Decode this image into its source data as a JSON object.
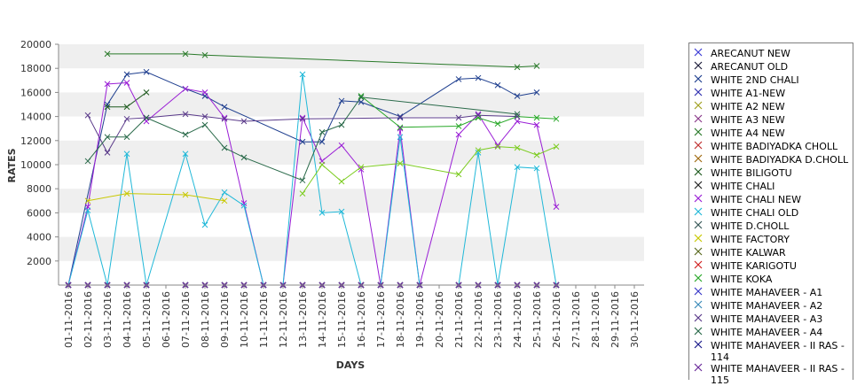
{
  "chart_data": {
    "type": "line",
    "xlabel": "DAYS",
    "ylabel": "RATES",
    "ylim": [
      0,
      20000
    ],
    "yticks": [
      2000,
      4000,
      6000,
      8000,
      10000,
      12000,
      14000,
      16000,
      18000,
      20000
    ],
    "grid": "horizontal bands",
    "legend": "right",
    "categories": [
      "01-11-2016",
      "02-11-2016",
      "03-11-2016",
      "04-11-2016",
      "05-11-2016",
      "06-11-2016",
      "07-11-2016",
      "08-11-2016",
      "09-11-2016",
      "10-11-2016",
      "11-11-2016",
      "12-11-2016",
      "13-11-2016",
      "14-11-2016",
      "15-11-2016",
      "16-11-2016",
      "17-11-2016",
      "18-11-2016",
      "19-11-2016",
      "20-11-2016",
      "21-11-2016",
      "22-11-2016",
      "23-11-2016",
      "24-11-2016",
      "25-11-2016",
      "26-11-2016",
      "27-11-2016",
      "28-11-2016",
      "29-11-2016",
      "30-11-2016"
    ],
    "series": [
      {
        "name": "ARECANUT NEW",
        "color": "#3b3bd6",
        "values": [
          0,
          0,
          0,
          0,
          0,
          null,
          0,
          0,
          0,
          0,
          0,
          0,
          0,
          0,
          0,
          0,
          0,
          0,
          0,
          null,
          0,
          0,
          0,
          0,
          0,
          0,
          null,
          null,
          null,
          null
        ]
      },
      {
        "name": "ARECANUT OLD",
        "color": "#1c1c3a",
        "values": [
          0,
          0,
          0,
          0,
          0,
          null,
          0,
          0,
          0,
          0,
          0,
          0,
          0,
          0,
          0,
          0,
          0,
          0,
          0,
          null,
          0,
          0,
          0,
          0,
          0,
          0,
          null,
          null,
          null,
          null
        ]
      },
      {
        "name": "WHITE 2ND CHALI",
        "color": "#1f3f8f",
        "values": [
          0,
          null,
          15000,
          17500,
          17700,
          null,
          16300,
          15700,
          14800,
          null,
          null,
          null,
          11900,
          11900,
          15300,
          15200,
          null,
          14000,
          null,
          null,
          17100,
          17200,
          16600,
          15700,
          16000,
          null,
          null,
          null,
          null,
          null
        ]
      },
      {
        "name": "WHITE A1-NEW",
        "color": "#3030b0",
        "values": [
          0,
          0,
          0,
          0,
          0,
          null,
          0,
          0,
          0,
          0,
          0,
          0,
          0,
          0,
          0,
          0,
          0,
          0,
          0,
          null,
          0,
          0,
          0,
          0,
          0,
          0,
          null,
          null,
          null,
          null
        ]
      },
      {
        "name": "WHITE A2 NEW",
        "color": "#a0a020",
        "values": [
          0,
          null,
          null,
          null,
          null,
          null,
          null,
          null,
          null,
          null,
          null,
          null,
          null,
          null,
          null,
          null,
          null,
          null,
          null,
          null,
          null,
          null,
          null,
          null,
          null,
          null,
          null,
          null,
          null,
          null
        ]
      },
      {
        "name": "WHITE A3 NEW",
        "color": "#8a3a8a",
        "values": [
          0,
          0,
          0,
          0,
          0,
          null,
          0,
          0,
          0,
          0,
          0,
          0,
          0,
          0,
          0,
          0,
          0,
          0,
          0,
          null,
          0,
          0,
          0,
          0,
          0,
          0,
          null,
          null,
          null,
          null
        ]
      },
      {
        "name": "WHITE A4 NEW",
        "color": "#2a7a2a",
        "values": [
          null,
          null,
          19200,
          null,
          null,
          null,
          19200,
          19100,
          null,
          null,
          null,
          null,
          null,
          null,
          null,
          null,
          null,
          null,
          null,
          null,
          null,
          null,
          null,
          18100,
          18200,
          null,
          null,
          null,
          null,
          null
        ]
      },
      {
        "name": "WHITE BADIYADKA CHOLL",
        "color": "#c03030",
        "values": [
          0,
          0,
          0,
          0,
          0,
          null,
          0,
          0,
          0,
          0,
          0,
          0,
          0,
          0,
          0,
          0,
          0,
          0,
          0,
          null,
          0,
          0,
          0,
          0,
          0,
          0,
          null,
          null,
          null,
          null
        ]
      },
      {
        "name": "WHITE BADIYADKA D.CHOLL",
        "color": "#a06a10",
        "values": [
          0,
          0,
          0,
          0,
          0,
          null,
          0,
          0,
          0,
          0,
          0,
          0,
          0,
          0,
          0,
          0,
          0,
          0,
          0,
          null,
          0,
          0,
          0,
          0,
          0,
          0,
          null,
          null,
          null,
          null
        ]
      },
      {
        "name": "WHITE BILIGOTU",
        "color": "#1e5a1e",
        "values": [
          null,
          null,
          14800,
          14800,
          16000,
          null,
          null,
          null,
          null,
          null,
          null,
          null,
          null,
          null,
          null,
          null,
          null,
          null,
          null,
          null,
          null,
          null,
          null,
          null,
          null,
          null,
          null,
          null,
          null,
          null
        ]
      },
      {
        "name": "WHITE CHALI",
        "color": "#222222",
        "values": [
          0,
          0,
          0,
          0,
          0,
          null,
          0,
          0,
          0,
          0,
          0,
          0,
          0,
          0,
          0,
          0,
          0,
          0,
          0,
          null,
          0,
          0,
          0,
          0,
          0,
          0,
          null,
          null,
          null,
          null
        ]
      },
      {
        "name": "WHITE CHALI NEW",
        "color": "#9a1ed6",
        "values": [
          0,
          6500,
          16700,
          16800,
          13600,
          null,
          16300,
          16000,
          13900,
          6800,
          0,
          0,
          13900,
          10300,
          11600,
          9600,
          0,
          13000,
          0,
          null,
          12500,
          14200,
          11600,
          13600,
          13300,
          6500,
          null,
          null,
          null,
          null
        ]
      },
      {
        "name": "WHITE CHALI OLD",
        "color": "#20b8d8",
        "values": [
          0,
          6200,
          0,
          10900,
          0,
          null,
          10900,
          5000,
          7700,
          6600,
          0,
          0,
          17500,
          6000,
          6100,
          0,
          0,
          12300,
          0,
          null,
          0,
          11000,
          0,
          9800,
          9700,
          0,
          null,
          null,
          null,
          null
        ]
      },
      {
        "name": "WHITE D.CHOLL",
        "color": "#3a5a5a",
        "values": [
          0,
          0,
          0,
          0,
          0,
          null,
          0,
          0,
          0,
          0,
          0,
          0,
          0,
          0,
          0,
          0,
          0,
          0,
          0,
          null,
          0,
          0,
          0,
          0,
          0,
          0,
          null,
          null,
          null,
          null
        ]
      },
      {
        "name": "WHITE FACTORY",
        "color": "#c8c800",
        "values": [
          null,
          7000,
          null,
          7600,
          null,
          null,
          7500,
          null,
          7000,
          null,
          null,
          null,
          null,
          null,
          null,
          null,
          null,
          null,
          null,
          null,
          null,
          null,
          null,
          null,
          null,
          null,
          null,
          null,
          null,
          null
        ]
      },
      {
        "name": "WHITE KALWAR",
        "color": "#5a6a20",
        "values": [
          0,
          0,
          0,
          0,
          0,
          null,
          0,
          0,
          0,
          0,
          0,
          0,
          0,
          0,
          0,
          0,
          0,
          0,
          0,
          null,
          0,
          0,
          0,
          0,
          0,
          0,
          null,
          null,
          null,
          null
        ]
      },
      {
        "name": "WHITE KARIGOTU",
        "color": "#d02020",
        "values": [
          0,
          0,
          0,
          0,
          0,
          null,
          0,
          0,
          0,
          0,
          0,
          0,
          0,
          0,
          0,
          0,
          0,
          0,
          0,
          null,
          0,
          0,
          0,
          0,
          0,
          0,
          null,
          null,
          null,
          null
        ]
      },
      {
        "name": "WHITE KOKA",
        "color": "#28a828",
        "values": [
          null,
          null,
          null,
          null,
          null,
          null,
          null,
          null,
          null,
          null,
          null,
          null,
          null,
          null,
          null,
          15700,
          null,
          13100,
          null,
          null,
          13200,
          13900,
          13400,
          14000,
          13900,
          13800,
          null,
          null,
          null,
          null
        ]
      },
      {
        "name": "WHITE MAHAVEER - A1",
        "color": "#3a3ac8",
        "values": [
          0,
          0,
          0,
          0,
          0,
          null,
          0,
          0,
          0,
          0,
          0,
          0,
          0,
          0,
          0,
          0,
          0,
          0,
          0,
          null,
          0,
          0,
          0,
          0,
          0,
          0,
          null,
          null,
          null,
          null
        ]
      },
      {
        "name": "WHITE MAHAVEER - A2",
        "color": "#3a8ab8",
        "values": [
          0,
          0,
          0,
          0,
          0,
          null,
          0,
          0,
          0,
          0,
          0,
          0,
          0,
          0,
          0,
          0,
          0,
          0,
          0,
          null,
          0,
          0,
          0,
          0,
          0,
          0,
          null,
          null,
          null,
          null
        ]
      },
      {
        "name": "WHITE MAHAVEER - A3",
        "color": "#5a3a8a",
        "values": [
          null,
          14100,
          11000,
          13800,
          13900,
          null,
          14200,
          14000,
          13800,
          13600,
          null,
          null,
          13800,
          null,
          null,
          null,
          null,
          13900,
          null,
          null,
          13900,
          14100,
          null,
          14000,
          null,
          null,
          null,
          null,
          null,
          null
        ]
      },
      {
        "name": "WHITE MAHAVEER - A4",
        "color": "#2a6a4a",
        "values": [
          null,
          10300,
          12300,
          12300,
          13900,
          null,
          12500,
          13300,
          11400,
          10600,
          null,
          null,
          8700,
          12700,
          13300,
          15600,
          null,
          null,
          null,
          null,
          null,
          null,
          null,
          14200,
          null,
          null,
          null,
          null,
          null,
          null
        ]
      },
      {
        "name": "WHITE MAHAVEER - II RAS - 114",
        "color": "#1a1a8a",
        "values": [
          0,
          0,
          0,
          0,
          0,
          null,
          0,
          0,
          0,
          0,
          0,
          0,
          0,
          0,
          0,
          0,
          0,
          0,
          0,
          null,
          0,
          0,
          0,
          0,
          0,
          0,
          null,
          null,
          null,
          null
        ]
      },
      {
        "name": "WHITE MAHAVEER - II RAS - 115",
        "color": "#6a2a9a",
        "values": [
          0,
          0,
          0,
          0,
          0,
          null,
          0,
          0,
          0,
          0,
          0,
          0,
          0,
          0,
          0,
          0,
          0,
          0,
          0,
          null,
          0,
          0,
          0,
          0,
          0,
          0,
          null,
          null,
          null,
          null
        ]
      },
      {
        "name": "",
        "color": "#7ccc20",
        "values": [
          null,
          null,
          null,
          null,
          null,
          null,
          null,
          null,
          null,
          null,
          null,
          null,
          7600,
          10000,
          8600,
          9800,
          null,
          10100,
          null,
          null,
          9200,
          11200,
          11500,
          11400,
          10800,
          11500,
          null,
          null,
          null,
          null
        ]
      }
    ]
  }
}
